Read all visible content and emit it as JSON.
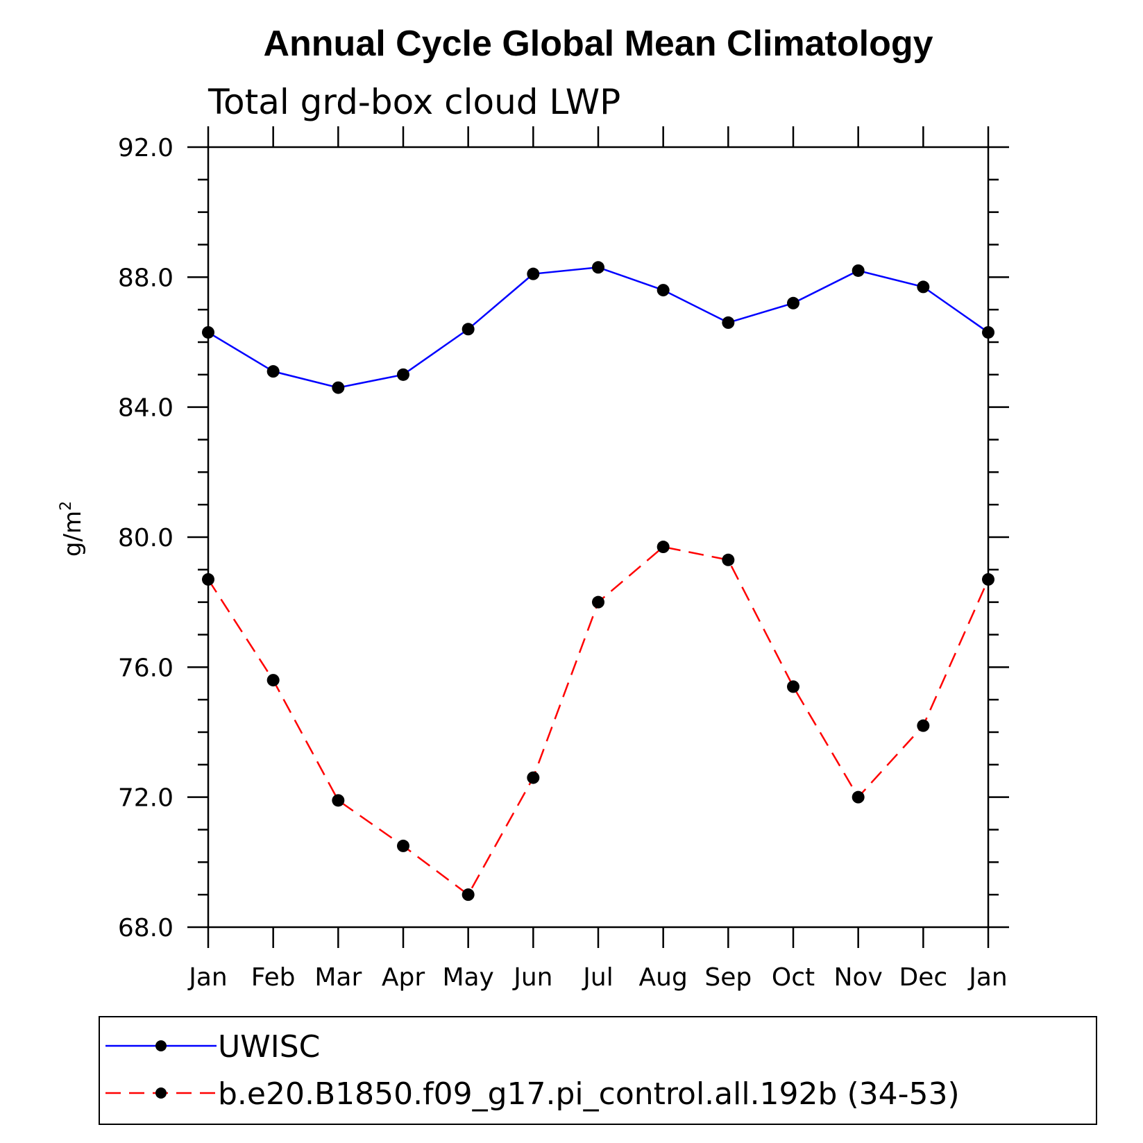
{
  "chart_data": {
    "type": "line",
    "title": "Annual Cycle Global Mean Climatology",
    "subtitle": "Total grd-box cloud LWP",
    "ylabel": "g/m",
    "ylabel_sup": "2",
    "xlabel": "",
    "categories": [
      "Jan",
      "Feb",
      "Mar",
      "Apr",
      "May",
      "Jun",
      "Jul",
      "Aug",
      "Sep",
      "Oct",
      "Nov",
      "Dec",
      "Jan"
    ],
    "ylim": [
      68.0,
      92.0
    ],
    "yticks": [
      "92.0",
      "88.0",
      "84.0",
      "80.0",
      "76.0",
      "72.0",
      "68.0"
    ],
    "grid": false,
    "legend_position": "bottom",
    "series": [
      {
        "name": "UWISC",
        "color": "#0000ff",
        "dash": "solid",
        "marker_color": "#000000",
        "values": [
          86.3,
          85.1,
          84.6,
          85.0,
          86.4,
          88.1,
          88.3,
          87.6,
          86.6,
          87.2,
          88.2,
          87.7,
          86.3
        ]
      },
      {
        "name": "b.e20.B1850.f09_g17.pi_control.all.192b (34-53)",
        "color": "#ff0000",
        "dash": "dashed",
        "marker_color": "#000000",
        "values": [
          78.7,
          75.6,
          71.9,
          70.5,
          69.0,
          72.6,
          78.0,
          79.7,
          79.3,
          75.4,
          72.0,
          74.2,
          78.7
        ]
      }
    ]
  }
}
